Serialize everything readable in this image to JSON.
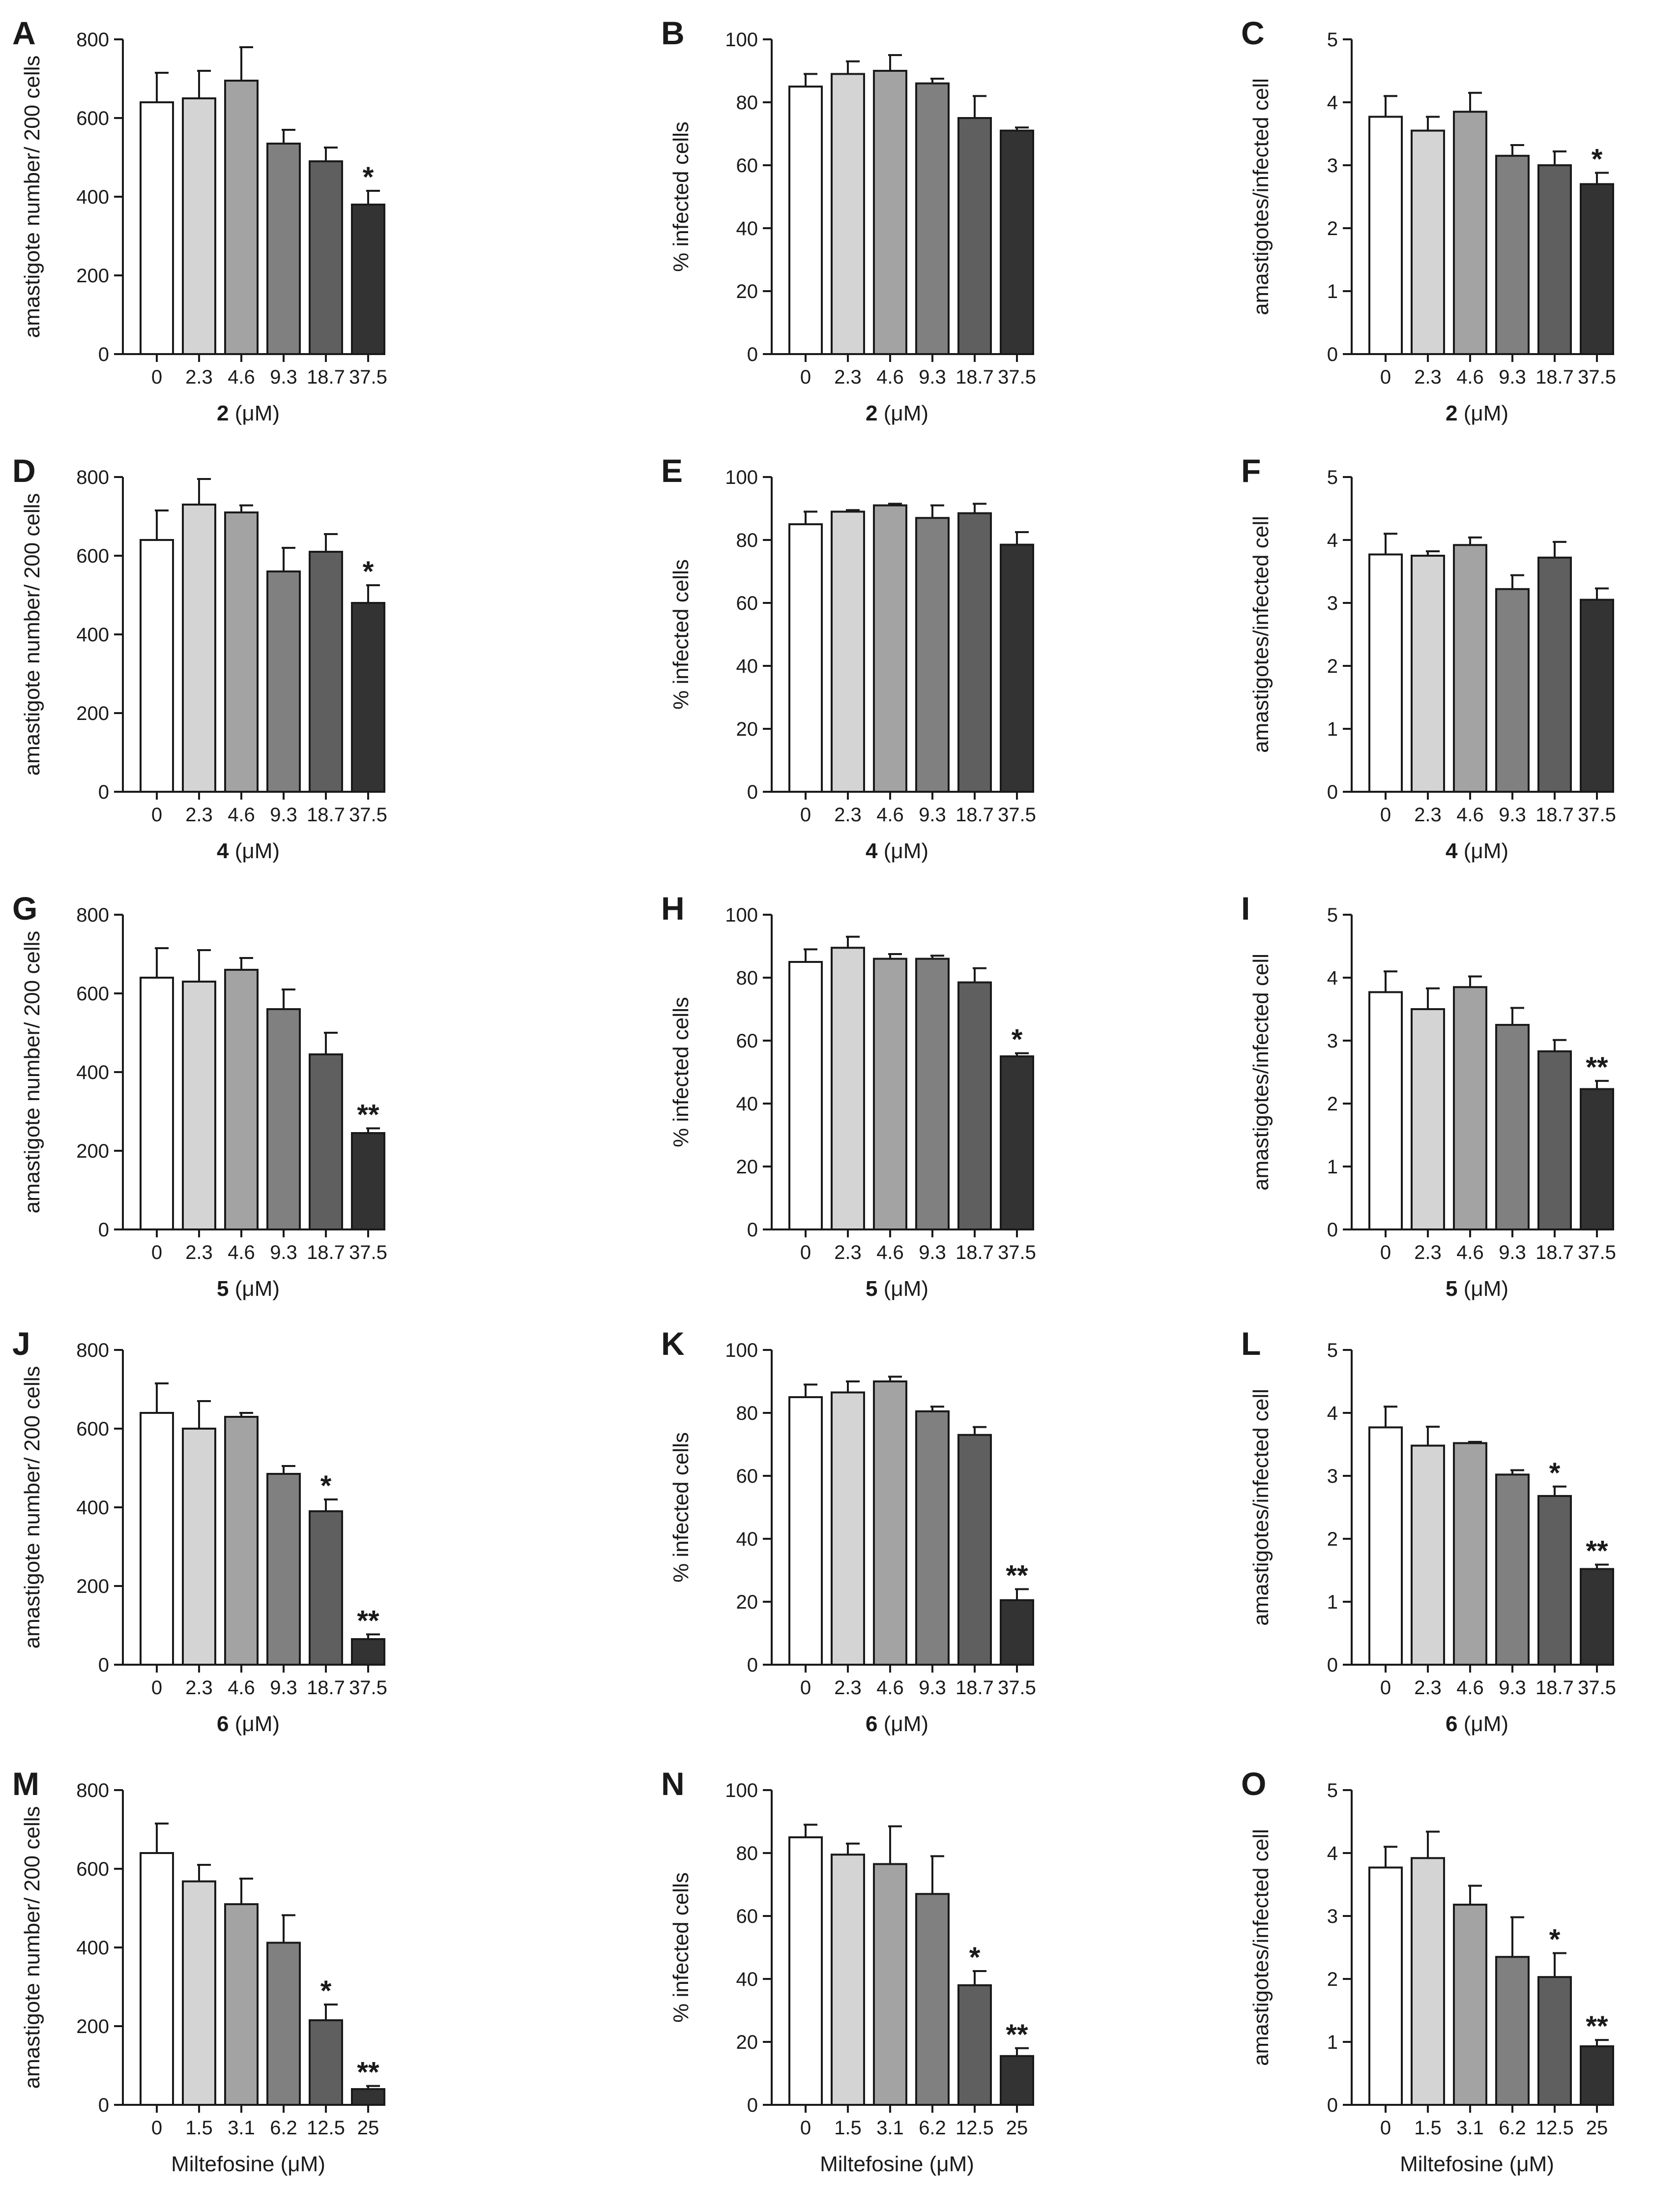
{
  "figure": {
    "greek_mu": "μ"
  },
  "chart_data": [
    {
      "panel": "A",
      "type": "bar",
      "metric": "amastigote",
      "ylabel": "amastigote number/ 200 cells",
      "ylim": [
        0,
        800
      ],
      "yticks": [
        0,
        200,
        400,
        600,
        800
      ],
      "xlabel_compound": "2",
      "xlabel_unit": " (μM)",
      "categories": [
        "0",
        "2.3",
        "4.6",
        "9.3",
        "18.7",
        "37.5"
      ],
      "values": [
        640,
        650,
        695,
        535,
        490,
        380
      ],
      "errors": [
        75,
        70,
        85,
        35,
        35,
        35
      ],
      "significance": [
        "",
        "",
        "",
        "",
        "",
        "*"
      ]
    },
    {
      "panel": "B",
      "type": "bar",
      "metric": "percent",
      "ylabel": "% infected cells",
      "ylim": [
        0,
        100
      ],
      "yticks": [
        0,
        20,
        40,
        60,
        80,
        100
      ],
      "xlabel_compound": "2",
      "xlabel_unit": " (μM)",
      "categories": [
        "0",
        "2.3",
        "4.6",
        "9.3",
        "18.7",
        "37.5"
      ],
      "values": [
        85,
        89,
        90,
        86,
        75,
        71
      ],
      "errors": [
        4,
        4,
        5,
        1.5,
        7,
        1
      ],
      "significance": [
        "",
        "",
        "",
        "",
        "",
        ""
      ]
    },
    {
      "panel": "C",
      "type": "bar",
      "metric": "ratio",
      "ylabel": "amastigotes/infected cell",
      "ylim": [
        0,
        5
      ],
      "yticks": [
        0,
        1,
        2,
        3,
        4,
        5
      ],
      "xlabel_compound": "2",
      "xlabel_unit": " (μM)",
      "categories": [
        "0",
        "2.3",
        "4.6",
        "9.3",
        "18.7",
        "37.5"
      ],
      "values": [
        3.77,
        3.55,
        3.85,
        3.15,
        3.0,
        2.7
      ],
      "errors": [
        0.33,
        0.22,
        0.3,
        0.17,
        0.22,
        0.18
      ],
      "significance": [
        "",
        "",
        "",
        "",
        "",
        "*"
      ]
    },
    {
      "panel": "D",
      "type": "bar",
      "metric": "amastigote",
      "ylabel": "amastigote number/ 200 cells",
      "ylim": [
        0,
        800
      ],
      "yticks": [
        0,
        200,
        400,
        600,
        800
      ],
      "xlabel_compound": "4",
      "xlabel_unit": " (μM)",
      "categories": [
        "0",
        "2.3",
        "4.6",
        "9.3",
        "18.7",
        "37.5"
      ],
      "values": [
        640,
        730,
        710,
        560,
        610,
        480
      ],
      "errors": [
        75,
        65,
        18,
        60,
        45,
        45
      ],
      "significance": [
        "",
        "",
        "",
        "",
        "",
        "*"
      ]
    },
    {
      "panel": "E",
      "type": "bar",
      "metric": "percent",
      "ylabel": "% infected cells",
      "ylim": [
        0,
        100
      ],
      "yticks": [
        0,
        20,
        40,
        60,
        80,
        100
      ],
      "xlabel_compound": "4",
      "xlabel_unit": " (μM)",
      "categories": [
        "0",
        "2.3",
        "4.6",
        "9.3",
        "18.7",
        "37.5"
      ],
      "values": [
        85,
        89,
        91,
        87,
        88.5,
        78.5
      ],
      "errors": [
        4,
        0.5,
        0.5,
        4,
        3,
        4
      ],
      "significance": [
        "",
        "",
        "",
        "",
        "",
        ""
      ]
    },
    {
      "panel": "F",
      "type": "bar",
      "metric": "ratio",
      "ylabel": "amastigotes/infected cell",
      "ylim": [
        0,
        5
      ],
      "yticks": [
        0,
        1,
        2,
        3,
        4,
        5
      ],
      "xlabel_compound": "4",
      "xlabel_unit": " (μM)",
      "categories": [
        "0",
        "2.3",
        "4.6",
        "9.3",
        "18.7",
        "37.5"
      ],
      "values": [
        3.77,
        3.75,
        3.92,
        3.22,
        3.72,
        3.05
      ],
      "errors": [
        0.33,
        0.07,
        0.12,
        0.22,
        0.25,
        0.18
      ],
      "significance": [
        "",
        "",
        "",
        "",
        "",
        ""
      ]
    },
    {
      "panel": "G",
      "type": "bar",
      "metric": "amastigote",
      "ylabel": "amastigote number/ 200 cells",
      "ylim": [
        0,
        800
      ],
      "yticks": [
        0,
        200,
        400,
        600,
        800
      ],
      "xlabel_compound": "5",
      "xlabel_unit": " (μM)",
      "categories": [
        "0",
        "2.3",
        "4.6",
        "9.3",
        "18.7",
        "37.5"
      ],
      "values": [
        640,
        630,
        660,
        560,
        445,
        245
      ],
      "errors": [
        75,
        80,
        30,
        50,
        55,
        12
      ],
      "significance": [
        "",
        "",
        "",
        "",
        "",
        "**"
      ]
    },
    {
      "panel": "H",
      "type": "bar",
      "metric": "percent",
      "ylabel": "% infected cells",
      "ylim": [
        0,
        100
      ],
      "yticks": [
        0,
        20,
        40,
        60,
        80,
        100
      ],
      "xlabel_compound": "5",
      "xlabel_unit": " (μM)",
      "categories": [
        "0",
        "2.3",
        "4.6",
        "9.3",
        "18.7",
        "37.5"
      ],
      "values": [
        85,
        89.5,
        86,
        86,
        78.5,
        55
      ],
      "errors": [
        4,
        3.5,
        1.5,
        1,
        4.5,
        1
      ],
      "significance": [
        "",
        "",
        "",
        "",
        "",
        "*"
      ]
    },
    {
      "panel": "I",
      "type": "bar",
      "metric": "ratio",
      "ylabel": "amastigotes/infected cell",
      "ylim": [
        0,
        5
      ],
      "yticks": [
        0,
        1,
        2,
        3,
        4,
        5
      ],
      "xlabel_compound": "5",
      "xlabel_unit": " (μM)",
      "categories": [
        "0",
        "2.3",
        "4.6",
        "9.3",
        "18.7",
        "37.5"
      ],
      "values": [
        3.77,
        3.5,
        3.85,
        3.25,
        2.83,
        2.23
      ],
      "errors": [
        0.33,
        0.33,
        0.17,
        0.27,
        0.18,
        0.13
      ],
      "significance": [
        "",
        "",
        "",
        "",
        "",
        "**"
      ]
    },
    {
      "panel": "J",
      "type": "bar",
      "metric": "amastigote",
      "ylabel": "amastigote number/ 200 cells",
      "ylim": [
        0,
        800
      ],
      "yticks": [
        0,
        200,
        400,
        600,
        800
      ],
      "xlabel_compound": "6",
      "xlabel_unit": " (μM)",
      "categories": [
        "0",
        "2.3",
        "4.6",
        "9.3",
        "18.7",
        "37.5"
      ],
      "values": [
        640,
        600,
        630,
        485,
        390,
        65
      ],
      "errors": [
        75,
        70,
        10,
        20,
        30,
        12
      ],
      "significance": [
        "",
        "",
        "",
        "",
        "*",
        "**"
      ]
    },
    {
      "panel": "K",
      "type": "bar",
      "metric": "percent",
      "ylabel": "% infected cells",
      "ylim": [
        0,
        100
      ],
      "yticks": [
        0,
        20,
        40,
        60,
        80,
        100
      ],
      "xlabel_compound": "6",
      "xlabel_unit": " (μM)",
      "categories": [
        "0",
        "2.3",
        "4.6",
        "9.3",
        "18.7",
        "37.5"
      ],
      "values": [
        85,
        86.5,
        90,
        80.5,
        73,
        20.5
      ],
      "errors": [
        4,
        3.5,
        1.5,
        1.5,
        2.5,
        3.5
      ],
      "significance": [
        "",
        "",
        "",
        "",
        "",
        "**"
      ]
    },
    {
      "panel": "L",
      "type": "bar",
      "metric": "ratio",
      "ylabel": "amastigotes/infected cell",
      "ylim": [
        0,
        5
      ],
      "yticks": [
        0,
        1,
        2,
        3,
        4,
        5
      ],
      "xlabel_compound": "6",
      "xlabel_unit": " (μM)",
      "categories": [
        "0",
        "2.3",
        "4.6",
        "9.3",
        "18.7",
        "37.5"
      ],
      "values": [
        3.77,
        3.48,
        3.52,
        3.02,
        2.68,
        1.52
      ],
      "errors": [
        0.33,
        0.3,
        0.02,
        0.07,
        0.15,
        0.07
      ],
      "significance": [
        "",
        "",
        "",
        "",
        "*",
        "**"
      ]
    },
    {
      "panel": "M",
      "type": "bar",
      "metric": "amastigote",
      "ylabel": "amastigote number/ 200 cells",
      "ylim": [
        0,
        800
      ],
      "yticks": [
        0,
        200,
        400,
        600,
        800
      ],
      "xlabel_compound": "",
      "xlabel_unit": "Miltefosine (μM)",
      "categories": [
        "0",
        "1.5",
        "3.1",
        "6.2",
        "12.5",
        "25"
      ],
      "values": [
        640,
        568,
        510,
        412,
        215,
        40
      ],
      "errors": [
        75,
        42,
        65,
        70,
        40,
        8
      ],
      "significance": [
        "",
        "",
        "",
        "",
        "*",
        "**"
      ]
    },
    {
      "panel": "N",
      "type": "bar",
      "metric": "percent",
      "ylabel": "% infected cells",
      "ylim": [
        0,
        100
      ],
      "yticks": [
        0,
        20,
        40,
        60,
        80,
        100
      ],
      "xlabel_compound": "",
      "xlabel_unit": "Miltefosine (μM)",
      "categories": [
        "0",
        "1.5",
        "3.1",
        "6.2",
        "12.5",
        "25"
      ],
      "values": [
        85,
        79.5,
        76.5,
        67,
        38,
        15.5
      ],
      "errors": [
        4,
        3.5,
        12,
        12,
        4.5,
        2.5
      ],
      "significance": [
        "",
        "",
        "",
        "",
        "*",
        "**"
      ]
    },
    {
      "panel": "O",
      "type": "bar",
      "metric": "ratio",
      "ylabel": "amastigotes/infected cell",
      "ylim": [
        0,
        5
      ],
      "yticks": [
        0,
        1,
        2,
        3,
        4,
        5
      ],
      "xlabel_compound": "",
      "xlabel_unit": "Miltefosine (μM)",
      "categories": [
        "0",
        "1.5",
        "3.1",
        "6.2",
        "12.5",
        "25"
      ],
      "values": [
        3.77,
        3.92,
        3.18,
        2.35,
        2.03,
        0.93
      ],
      "errors": [
        0.33,
        0.42,
        0.3,
        0.63,
        0.38,
        0.1
      ],
      "significance": [
        "",
        "",
        "",
        "",
        "*",
        "**"
      ]
    }
  ],
  "bar_colors": [
    "#ffffff",
    "#d4d4d4",
    "#a3a3a3",
    "#808080",
    "#5f5f5f",
    "#333333"
  ],
  "stroke_color": "#1a1a1a"
}
